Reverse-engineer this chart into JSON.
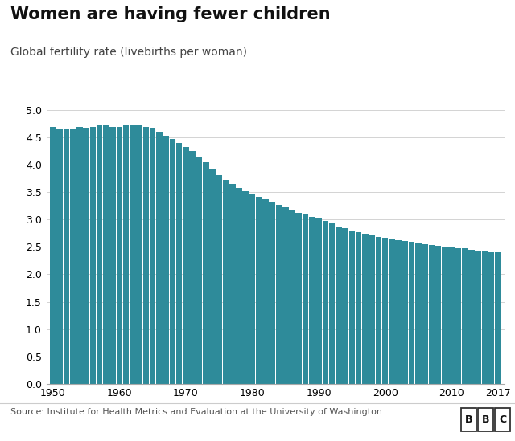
{
  "title": "Women are having fewer children",
  "subtitle": "Global fertility rate (livebirths per woman)",
  "source": "Source: Institute for Health Metrics and Evaluation at the University of Washington",
  "bar_color": "#2e8b9a",
  "background_color": "#ffffff",
  "ylim": [
    0,
    5.0
  ],
  "yticks": [
    0,
    0.5,
    1.0,
    1.5,
    2.0,
    2.5,
    3.0,
    3.5,
    4.0,
    4.5,
    5.0
  ],
  "xtick_years": [
    1950,
    1960,
    1970,
    1980,
    1990,
    2000,
    2010,
    2017
  ],
  "years": [
    1950,
    1951,
    1952,
    1953,
    1954,
    1955,
    1956,
    1957,
    1958,
    1959,
    1960,
    1961,
    1962,
    1963,
    1964,
    1965,
    1966,
    1967,
    1968,
    1969,
    1970,
    1971,
    1972,
    1973,
    1974,
    1975,
    1976,
    1977,
    1978,
    1979,
    1980,
    1981,
    1982,
    1983,
    1984,
    1985,
    1986,
    1987,
    1988,
    1989,
    1990,
    1991,
    1992,
    1993,
    1994,
    1995,
    1996,
    1997,
    1998,
    1999,
    2000,
    2001,
    2002,
    2003,
    2004,
    2005,
    2006,
    2007,
    2008,
    2009,
    2010,
    2011,
    2012,
    2013,
    2014,
    2015,
    2016,
    2017
  ],
  "values": [
    4.7,
    4.65,
    4.65,
    4.67,
    4.69,
    4.68,
    4.7,
    4.72,
    4.72,
    4.7,
    4.7,
    4.72,
    4.73,
    4.72,
    4.7,
    4.68,
    4.6,
    4.53,
    4.47,
    4.4,
    4.33,
    4.25,
    4.15,
    4.05,
    3.92,
    3.82,
    3.72,
    3.65,
    3.58,
    3.52,
    3.47,
    3.42,
    3.37,
    3.32,
    3.27,
    3.22,
    3.17,
    3.13,
    3.09,
    3.05,
    3.02,
    2.98,
    2.93,
    2.88,
    2.84,
    2.8,
    2.77,
    2.74,
    2.71,
    2.69,
    2.67,
    2.65,
    2.63,
    2.61,
    2.59,
    2.57,
    2.55,
    2.53,
    2.52,
    2.51,
    2.5,
    2.48,
    2.47,
    2.45,
    2.44,
    2.43,
    2.41,
    2.4
  ]
}
